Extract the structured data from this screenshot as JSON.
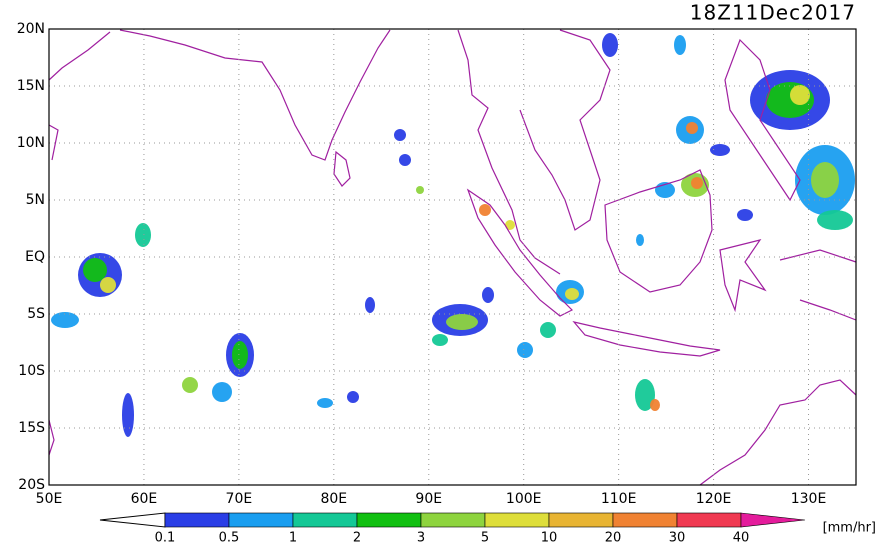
{
  "title": "18Z11Dec2017",
  "map": {
    "lat_labels": [
      "20N",
      "15N",
      "10N",
      "5N",
      "EQ",
      "5S",
      "10S",
      "15S",
      "20S"
    ],
    "lon_labels": [
      "50E",
      "60E",
      "70E",
      "80E",
      "90E",
      "100E",
      "110E",
      "120E",
      "130E"
    ]
  },
  "colorbar": {
    "labels": [
      "0.1",
      "0.5",
      "1",
      "2",
      "3",
      "5",
      "10",
      "20",
      "30",
      "40"
    ],
    "colors": [
      "#2a3ee6",
      "#1a9ef0",
      "#14c896",
      "#12c012",
      "#8ed43e",
      "#dede3a",
      "#e8b432",
      "#f08232",
      "#f03a52",
      "#e41c9c"
    ],
    "unit": "[mm/hr]"
  }
}
